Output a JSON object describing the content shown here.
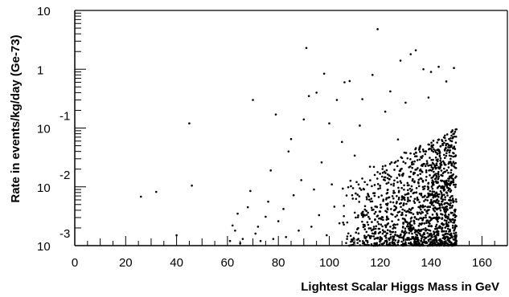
{
  "chart_data": {
    "type": "scatter",
    "title": "",
    "xlabel": "Lightest Scalar Higgs Mass in GeV",
    "ylabel": "Rate in events/kg/day (Ge-73)",
    "x_scale": "linear",
    "y_scale": "log",
    "xlim": [
      0,
      170
    ],
    "ylim": [
      0.001,
      10
    ],
    "grid": false,
    "legend": "none",
    "marker_color": "#000000",
    "x_ticks": [
      0,
      20,
      40,
      60,
      80,
      100,
      120,
      140,
      160
    ],
    "x_tick_labels": [
      "0",
      "20",
      "40",
      "60",
      "80",
      "100",
      "120",
      "140",
      "160"
    ],
    "y_ticks": [
      0.001,
      0.01,
      0.1,
      1,
      10
    ],
    "y_tick_labels": [
      {
        "base": "10",
        "exp": "-3"
      },
      {
        "base": "10",
        "exp": "-2"
      },
      {
        "base": "10",
        "exp": "-1"
      },
      {
        "base": "1",
        "exp": ""
      },
      {
        "base": "10",
        "exp": ""
      }
    ],
    "series": [
      {
        "marker": "dot",
        "points": [
          [
            26,
            0.0068
          ],
          [
            32,
            0.0082
          ],
          [
            40,
            0.0015
          ],
          [
            45,
            0.12
          ],
          [
            46,
            0.0105
          ],
          [
            61,
            0.0012
          ],
          [
            62,
            0.0022
          ],
          [
            63,
            0.0018
          ],
          [
            64,
            0.0035
          ],
          [
            65,
            0.0011
          ],
          [
            66,
            0.0013
          ],
          [
            68,
            0.0045
          ],
          [
            69,
            0.0085
          ],
          [
            70,
            0.3
          ],
          [
            71,
            0.0016
          ],
          [
            72,
            0.0021
          ],
          [
            73,
            0.0012
          ],
          [
            75,
            0.0031
          ],
          [
            76,
            0.0056
          ],
          [
            77,
            0.019
          ],
          [
            78,
            0.0013
          ],
          [
            79,
            0.17
          ],
          [
            80,
            0.0026
          ],
          [
            82,
            0.0042
          ],
          [
            83,
            0.0014
          ],
          [
            84,
            0.04
          ],
          [
            85,
            0.065
          ],
          [
            86,
            0.0072
          ],
          [
            88,
            0.0018
          ],
          [
            89,
            0.013
          ],
          [
            90,
            0.14
          ],
          [
            91,
            2.3
          ],
          [
            92,
            0.35
          ],
          [
            93,
            0.0021
          ],
          [
            94,
            0.009
          ],
          [
            95,
            0.4
          ],
          [
            96,
            0.0033
          ],
          [
            97,
            0.026
          ],
          [
            98,
            0.84
          ],
          [
            99,
            0.0015
          ],
          [
            100,
            0.12
          ],
          [
            101,
            0.011
          ],
          [
            102,
            0.0046
          ],
          [
            103,
            0.3
          ],
          [
            104,
            0.0024
          ],
          [
            105,
            0.058
          ],
          [
            106,
            0.6
          ],
          [
            107,
            0.0013
          ],
          [
            108,
            0.63
          ],
          [
            109,
            0.0072
          ],
          [
            110,
            0.034
          ],
          [
            111,
            0.0019
          ],
          [
            112,
            0.11
          ],
          [
            113,
            0.31
          ],
          [
            114,
            0.0041
          ],
          [
            115,
            0.0012
          ],
          [
            116,
            0.022
          ],
          [
            117,
            0.8
          ],
          [
            118,
            0.0028
          ],
          [
            119,
            4.8
          ],
          [
            120,
            0.0095
          ],
          [
            121,
            0.0016
          ],
          [
            122,
            0.19
          ],
          [
            123,
            0.0052
          ],
          [
            124,
            0.42
          ],
          [
            125,
            0.0013
          ],
          [
            126,
            0.0031
          ],
          [
            127,
            0.064
          ],
          [
            128,
            1.4
          ],
          [
            129,
            0.0021
          ],
          [
            130,
            0.27
          ],
          [
            131,
            0.0078
          ],
          [
            132,
            1.8
          ],
          [
            133,
            0.0014
          ],
          [
            134,
            2.1
          ],
          [
            135,
            0.012
          ],
          [
            136,
            0.0035
          ],
          [
            137,
            1.0
          ],
          [
            138,
            0.0011
          ],
          [
            139,
            0.33
          ],
          [
            140,
            0.9
          ],
          [
            141,
            0.0048
          ],
          [
            142,
            0.0017
          ],
          [
            143,
            1.1
          ],
          [
            144,
            0.026
          ],
          [
            145,
            0.0023
          ],
          [
            146,
            0.62
          ],
          [
            147,
            0.0013
          ],
          [
            148,
            0.0069
          ],
          [
            149,
            1.05
          ],
          [
            150,
            0.0012
          ],
          [
            124,
            0.0021
          ],
          [
            128,
            0.0015
          ],
          [
            132,
            0.0019
          ],
          [
            136,
            0.0012
          ],
          [
            140,
            0.0016
          ],
          [
            144,
            0.0011
          ],
          [
            120,
            0.0013
          ],
          [
            126,
            0.0017
          ],
          [
            130,
            0.0011
          ],
          [
            134,
            0.0014
          ],
          [
            138,
            0.0018
          ],
          [
            142,
            0.0013
          ],
          [
            146,
            0.0016
          ],
          [
            118,
            0.0017
          ],
          [
            122,
            0.0012
          ],
          [
            116,
            0.0014
          ],
          [
            114,
            0.0019
          ],
          [
            112,
            0.0012
          ],
          [
            148,
            0.0011
          ]
        ]
      }
    ],
    "dense_region": {
      "x_range": [
        105,
        150
      ],
      "y_range": [
        0.001,
        0.1
      ],
      "count": 1400,
      "seed": 7
    }
  }
}
